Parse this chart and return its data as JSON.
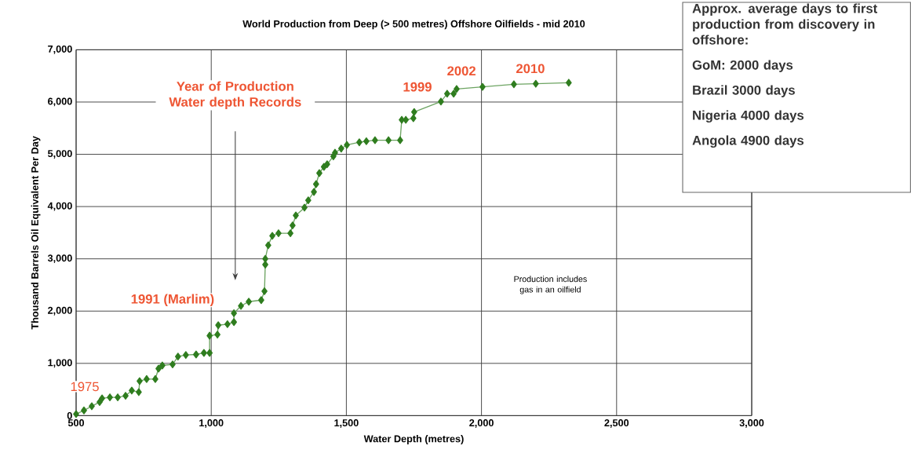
{
  "chart_data": {
    "type": "line",
    "title": "World Production from Deep (> 500 metres) Offshore Oilfields - mid 2010",
    "xlabel": "Water Depth (metres)",
    "ylabel": "Thousand Barrels Oil Equivalent Per Day",
    "series": [
      {
        "color": "#2f7d1f",
        "x": [
          500,
          529,
          558,
          587,
          596,
          625,
          654,
          683,
          706,
          732,
          735,
          761,
          793,
          805,
          819,
          857,
          877,
          906,
          944,
          973,
          994,
          994,
          1023,
          1026,
          1060,
          1084,
          1084,
          1110,
          1139,
          1185,
          1197,
          1200,
          1200,
          1211,
          1226,
          1249,
          1293,
          1301,
          1313,
          1345,
          1359,
          1380,
          1388,
          1400,
          1417,
          1429,
          1452,
          1458,
          1481,
          1502,
          1548,
          1574,
          1606,
          1656,
          1699,
          1705,
          1720,
          1748,
          1751,
          1850,
          1873,
          1897,
          1908,
          2004,
          2120,
          2201,
          2323
        ],
        "values": [
          30,
          100,
          180,
          260,
          330,
          350,
          350,
          380,
          480,
          450,
          660,
          700,
          700,
          900,
          960,
          980,
          1130,
          1160,
          1170,
          1200,
          1200,
          1530,
          1550,
          1730,
          1750,
          1790,
          1960,
          2100,
          2180,
          2210,
          2380,
          2890,
          3000,
          3260,
          3440,
          3490,
          3490,
          3640,
          3830,
          3980,
          4120,
          4280,
          4430,
          4640,
          4760,
          4810,
          4960,
          5030,
          5110,
          5180,
          5230,
          5250,
          5270,
          5270,
          5270,
          5660,
          5660,
          5690,
          5810,
          6010,
          6160,
          6160,
          6250,
          6290,
          6340,
          6350,
          6370
        ]
      }
    ],
    "xlim": [
      500,
      3000
    ],
    "ylim": [
      0,
      7000
    ],
    "xticks": [
      500,
      {
        "value": 1000,
        "label": "1,000"
      },
      {
        "value": 1500,
        "label": "1,500"
      },
      {
        "value": 2000,
        "label": "2,000"
      },
      {
        "value": 2500,
        "label": "2,500"
      },
      {
        "value": 3000,
        "label": "3,000"
      }
    ],
    "yticks": [
      0,
      {
        "value": 1000,
        "label": "1,000"
      },
      {
        "value": 2000,
        "label": "2,000"
      },
      {
        "value": 3000,
        "label": "3,000"
      },
      {
        "value": 4000,
        "label": "4,000"
      },
      {
        "value": 5000,
        "label": "5,000"
      },
      {
        "value": 6000,
        "label": "6,000"
      },
      {
        "value": 7000,
        "label": "7,000"
      }
    ],
    "grid": true,
    "marker": "diamond",
    "line_style": "solid",
    "annotations": [
      "1975",
      "1991 (Marlim)",
      "1999",
      "2002",
      "2010",
      "Year of Production Water depth Records",
      "Approx. average days to first production from discovery in offshore:",
      "GoM: 2000 days",
      "Brazil 3000 days",
      "Nigeria 4000 days",
      "Angola 4900 days",
      "Production includes gas in an oilfield"
    ]
  }
}
